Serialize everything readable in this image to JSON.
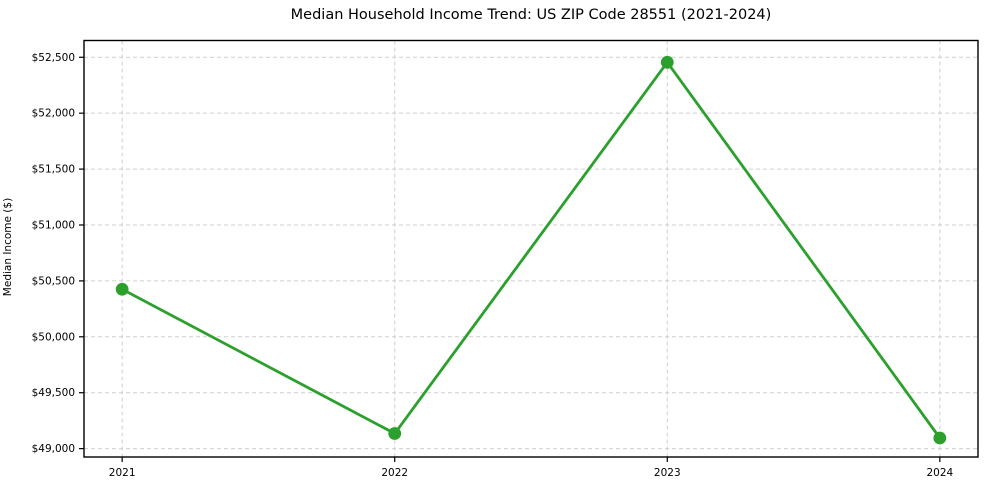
{
  "chart_data": {
    "type": "line",
    "title": "Median Household Income Trend: US ZIP Code 28551 (2021-2024)",
    "xlabel": "",
    "ylabel": "Median Income ($)",
    "x": [
      2021,
      2022,
      2023,
      2024
    ],
    "y": [
      50425,
      49135,
      52455,
      49095
    ],
    "x_tick_labels": [
      "2021",
      "2022",
      "2023",
      "2024"
    ],
    "y_ticks": [
      49000,
      49500,
      50000,
      50500,
      51000,
      51500,
      52000,
      52500
    ],
    "y_tick_prefix": "$",
    "xlim": [
      2020.86,
      2024.14
    ],
    "ylim": [
      48925,
      52650
    ],
    "grid": "dashed",
    "legend_position": "none",
    "colors": {
      "line": "#2ca02c",
      "marker": "#2ca02c",
      "grid": "#cfcfcf",
      "axis": "#000000",
      "text": "#000000",
      "background": "#ffffff"
    }
  }
}
